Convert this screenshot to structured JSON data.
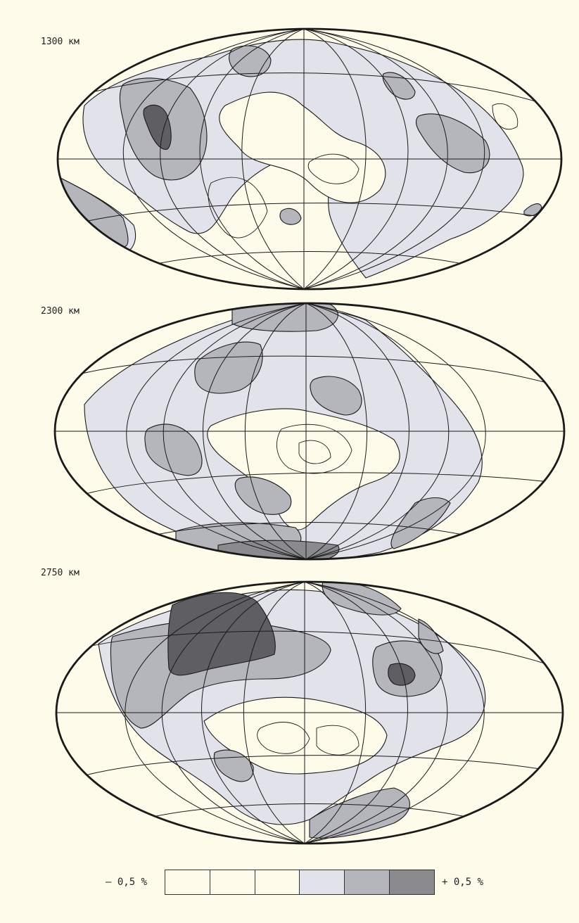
{
  "maps": [
    {
      "depth_label": "1300 км"
    },
    {
      "depth_label": "2300 км"
    },
    {
      "depth_label": "2750 км"
    }
  ],
  "legend": {
    "min_label": "– 0,5 %",
    "max_label": "+ 0,5 %",
    "colors": [
      "#fefbeb",
      "#fefbeb",
      "#fefbeb",
      "#e2e2ea",
      "#b5b5bc",
      "#8a8a8f"
    ]
  },
  "colors": {
    "background": "#fefbeb",
    "lightest_anomaly": "#e2e2ea",
    "medium_anomaly": "#b5b5bc",
    "dark_anomaly": "#8a8a8f",
    "darkest_anomaly": "#5f5f63",
    "lines": "#1a1a1a"
  }
}
